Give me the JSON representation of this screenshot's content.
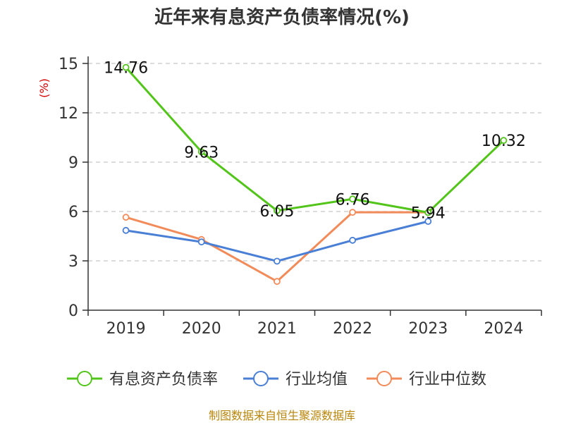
{
  "chart_data": {
    "type": "line",
    "title": "近年来有息资产负债率情况(%)",
    "ylabel": "(%)",
    "categories": [
      "2019",
      "2020",
      "2021",
      "2022",
      "2023",
      "2024"
    ],
    "ylim": [
      0,
      15
    ],
    "yticks": [
      0,
      3,
      6,
      9,
      12,
      15
    ],
    "grid": true,
    "legend_position": "bottom",
    "series": [
      {
        "name": "有息资产负债率",
        "color": "#52c41a",
        "values": [
          14.76,
          9.63,
          6.05,
          6.76,
          5.94,
          10.32
        ],
        "data_labels": [
          "14.76",
          "9.63",
          "6.05",
          "6.76",
          "5.94",
          "10.32"
        ]
      },
      {
        "name": "行业均值",
        "color": "#4a7fd6",
        "values": [
          4.85,
          4.15,
          2.98,
          4.25,
          5.4,
          null
        ]
      },
      {
        "name": "行业中位数",
        "color": "#f28b5a",
        "values": [
          5.65,
          4.3,
          1.75,
          5.95,
          5.95,
          null
        ]
      }
    ]
  },
  "footer": {
    "source": "制图数据来自恒生聚源数据库"
  }
}
